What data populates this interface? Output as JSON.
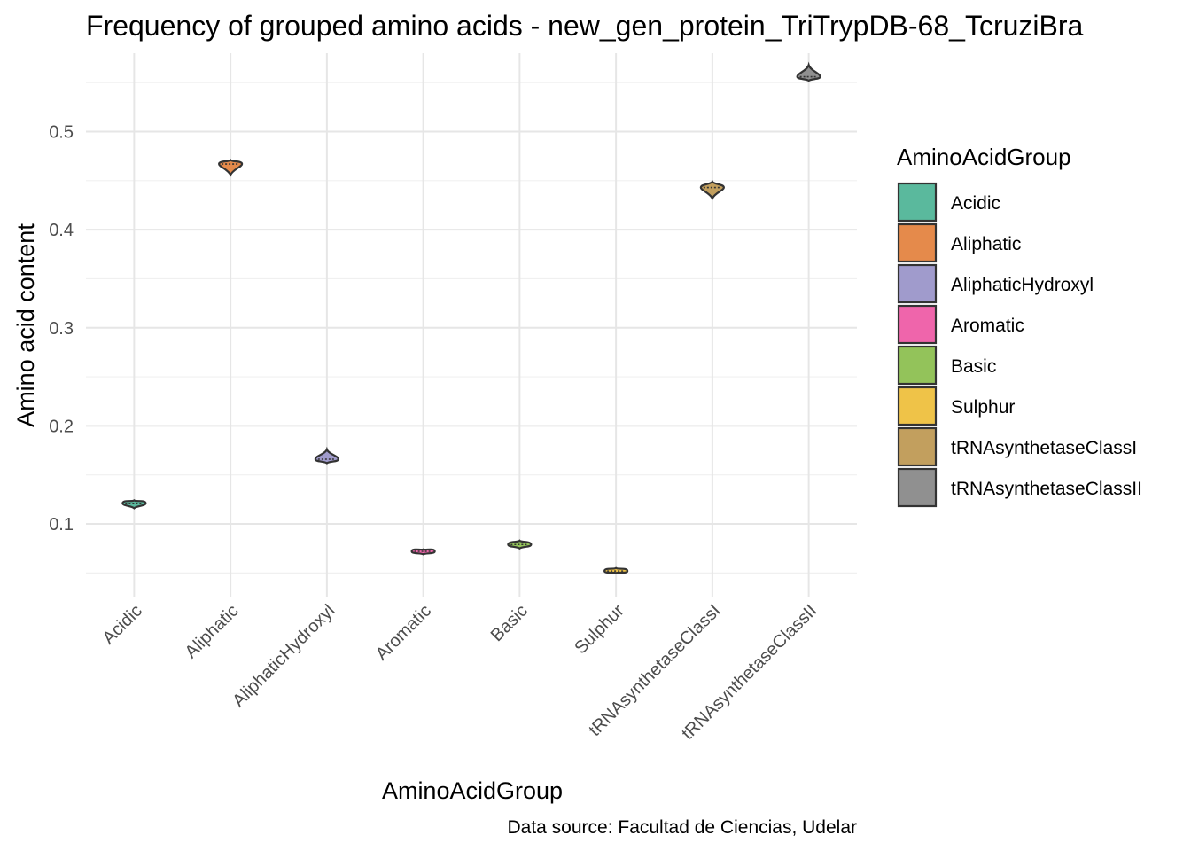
{
  "chart_data": {
    "type": "violin",
    "title": "Frequency of grouped amino acids - new_gen_protein_TriTrypDB-68_TcruziBra",
    "xlabel": "AminoAcidGroup",
    "ylabel": "Amino acid content",
    "caption": "Data source: Facultad de Ciencias, Udelar",
    "ylim": [
      0.025,
      0.58
    ],
    "yticks": [
      0.1,
      0.2,
      0.3,
      0.4,
      0.5
    ],
    "yticks_label": [
      "0.1",
      "0.2",
      "0.3",
      "0.4",
      "0.5"
    ],
    "grid": true,
    "legend": {
      "title": "AminoAcidGroup",
      "position": "right"
    },
    "categories": [
      "Acidic",
      "Aliphatic",
      "AliphaticHydroxyl",
      "Aromatic",
      "Basic",
      "Sulphur",
      "tRNAsynthetaseClassI",
      "tRNAsynthetaseClassII"
    ],
    "colors": [
      "#5ab99d",
      "#e58a4b",
      "#a09bcc",
      "#ef65ab",
      "#93c35a",
      "#efc348",
      "#c29f5e",
      "#909090"
    ],
    "series": [
      {
        "name": "Acidic",
        "median": 0.121,
        "min": 0.116,
        "max": 0.124
      },
      {
        "name": "Aliphatic",
        "median": 0.467,
        "min": 0.456,
        "max": 0.471
      },
      {
        "name": "AliphaticHydroxyl",
        "median": 0.166,
        "min": 0.162,
        "max": 0.176
      },
      {
        "name": "Aromatic",
        "median": 0.072,
        "min": 0.069,
        "max": 0.074
      },
      {
        "name": "Basic",
        "median": 0.079,
        "min": 0.075,
        "max": 0.083
      },
      {
        "name": "Sulphur",
        "median": 0.052,
        "min": 0.05,
        "max": 0.055
      },
      {
        "name": "tRNAsynthetaseClassI",
        "median": 0.443,
        "min": 0.432,
        "max": 0.449
      },
      {
        "name": "tRNAsynthetaseClassII",
        "median": 0.556,
        "min": 0.552,
        "max": 0.568
      }
    ]
  }
}
